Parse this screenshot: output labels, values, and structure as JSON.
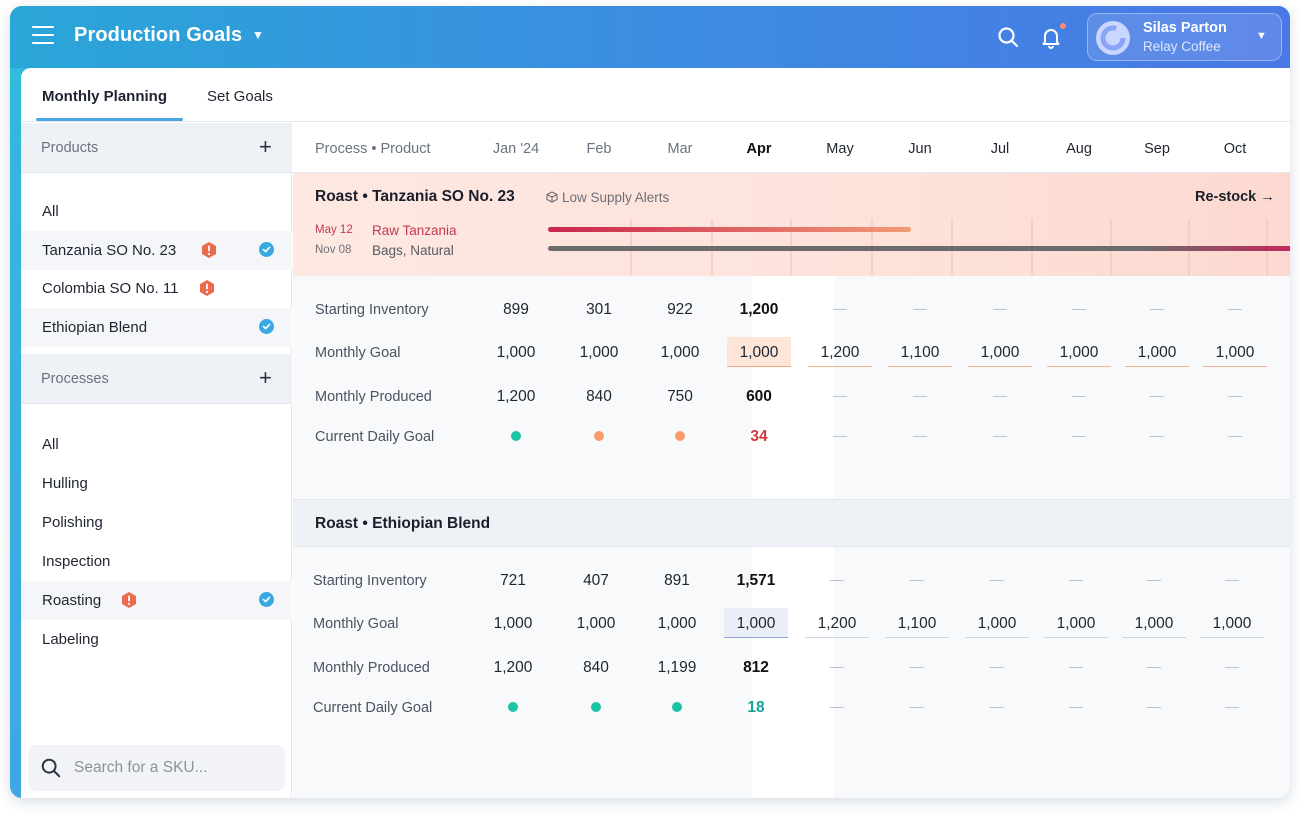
{
  "header": {
    "title": "Production Goals",
    "user_name": "Silas Parton",
    "user_org": "Relay Coffee"
  },
  "tabs": [
    {
      "label": "Monthly Planning",
      "active": true
    },
    {
      "label": "Set Goals",
      "active": false
    }
  ],
  "sidebar": {
    "products_label": "Products",
    "products": [
      {
        "label": "All",
        "warn": false,
        "checked": false,
        "selected": false
      },
      {
        "label": "Tanzania SO No. 23",
        "warn": true,
        "checked": true,
        "selected": true
      },
      {
        "label": "Colombia SO No. 11",
        "warn": true,
        "checked": false,
        "selected": false
      },
      {
        "label": "Ethiopian Blend",
        "warn": false,
        "checked": true,
        "selected": true
      }
    ],
    "processes_label": "Processes",
    "processes": [
      {
        "label": "All",
        "warn": false,
        "checked": false,
        "selected": false
      },
      {
        "label": "Hulling",
        "warn": false,
        "checked": false,
        "selected": false
      },
      {
        "label": "Polishing",
        "warn": false,
        "checked": false,
        "selected": false
      },
      {
        "label": "Inspection",
        "warn": false,
        "checked": false,
        "selected": false
      },
      {
        "label": "Roasting",
        "warn": true,
        "checked": true,
        "selected": true
      },
      {
        "label": "Labeling",
        "warn": false,
        "checked": false,
        "selected": false
      }
    ],
    "search_placeholder": "Search for a SKU..."
  },
  "grid": {
    "first_col_label": "Process • Product",
    "months": [
      "Jan '24",
      "Feb",
      "Mar",
      "Apr",
      "May",
      "Jun",
      "Jul",
      "Aug",
      "Sep",
      "Oct"
    ],
    "current_month_index": 3,
    "dash": "—",
    "alert": {
      "title": "Roast • Tanzania SO No. 23",
      "badge": "Low Supply Alerts",
      "action": "Re-stock →",
      "items": [
        {
          "date": "May 12",
          "name": "Raw Tanzania",
          "color": "#d2334e"
        },
        {
          "date": "Nov 08",
          "name": "Bags, Natural",
          "color": "#5d5d63"
        }
      ]
    },
    "sections": [
      {
        "rows": [
          {
            "label": "Starting Inventory",
            "values": [
              "899",
              "301",
              "922",
              "1,200"
            ]
          },
          {
            "label": "Monthly Goal",
            "values": [
              "1,000",
              "1,000",
              "1,000",
              "1,000",
              "1,200",
              "1,100",
              "1,000",
              "1,000",
              "1,000",
              "1,000"
            ]
          },
          {
            "label": "Monthly Produced",
            "values": [
              "1,200",
              "840",
              "750",
              "600"
            ]
          },
          {
            "label": "Current Daily Goal",
            "dots": [
              "#1cc3a4",
              "#f99a6a",
              "#f99a6a"
            ],
            "current": "34"
          }
        ]
      },
      {
        "title": "Roast • Ethiopian Blend",
        "rows": [
          {
            "label": "Starting Inventory",
            "values": [
              "721",
              "407",
              "891",
              "1,571"
            ]
          },
          {
            "label": "Monthly Goal",
            "values": [
              "1,000",
              "1,000",
              "1,000",
              "1,000",
              "1,200",
              "1,100",
              "1,000",
              "1,000",
              "1,000",
              "1,000"
            ]
          },
          {
            "label": "Monthly Produced",
            "values": [
              "1,200",
              "840",
              "1,199",
              "812"
            ]
          },
          {
            "label": "Current Daily Goal",
            "dots": [
              "#1cc3a4",
              "#1cc3a4",
              "#1cc3a4"
            ],
            "current": "18"
          }
        ]
      }
    ]
  }
}
